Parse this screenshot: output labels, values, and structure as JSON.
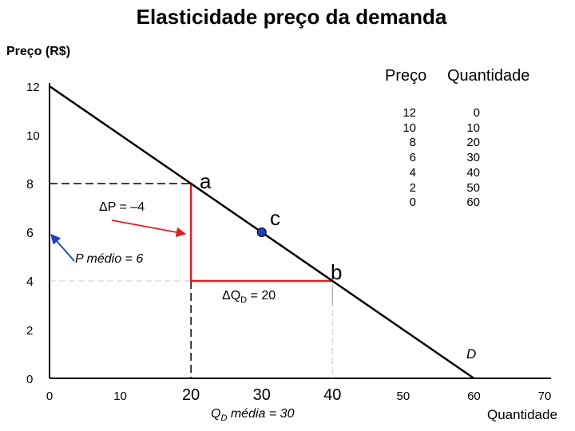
{
  "chart_data": {
    "type": "line",
    "title": "Elasticidade preço da demanda",
    "ylabel": "Preço (R$)",
    "xlabel": "Quantidade",
    "xlim": [
      0,
      70
    ],
    "ylim": [
      0,
      12
    ],
    "x_ticks": [
      "0",
      "10",
      "20",
      "30",
      "40",
      "50",
      "60",
      "70"
    ],
    "y_ticks": [
      "0",
      "2",
      "4",
      "6",
      "8",
      "10",
      "12"
    ],
    "series": [
      {
        "name": "D",
        "x": [
          0,
          10,
          20,
          30,
          40,
          50,
          60
        ],
        "y": [
          12,
          10,
          8,
          6,
          4,
          2,
          0
        ]
      }
    ],
    "points": [
      {
        "label": "a",
        "x": 20,
        "y": 8
      },
      {
        "label": "b",
        "x": 40,
        "y": 4
      },
      {
        "label": "c",
        "x": 30,
        "y": 6
      }
    ],
    "annotations": {
      "delta_p": "ΔP = –4",
      "delta_q_prefix": "ΔQ",
      "delta_q_sub": "D",
      "delta_q_suffix": " = 20",
      "p_medio": "P médio = 6",
      "q_media_prefix": "Q",
      "q_media_sub": "D",
      "q_media_suffix": " média = 30",
      "demand_label": "D"
    },
    "table": {
      "headers": [
        "Preço",
        "Quantidade"
      ],
      "rows": [
        [
          "12",
          "0"
        ],
        [
          "10",
          "10"
        ],
        [
          "8",
          "20"
        ],
        [
          "6",
          "30"
        ],
        [
          "4",
          "40"
        ],
        [
          "2",
          "50"
        ],
        [
          "0",
          "60"
        ]
      ]
    },
    "colors": {
      "demand": "#000000",
      "change": "#e02020",
      "arrow_red": "#e02020",
      "arrow_blue": "#1f3fbf",
      "point_c": "#1f3fbf"
    }
  }
}
